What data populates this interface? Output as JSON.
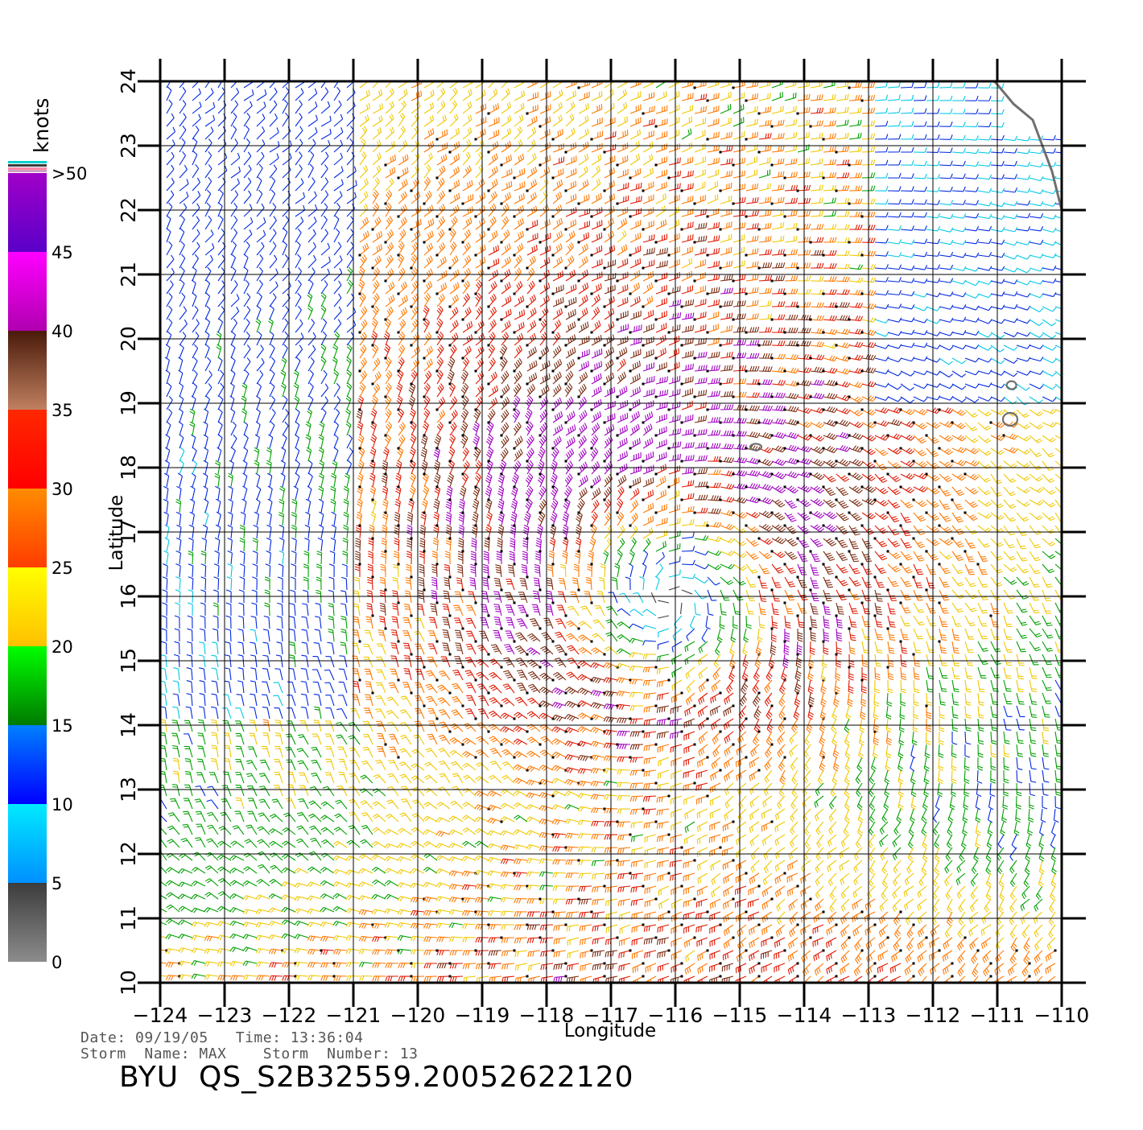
{
  "map": {
    "x_axis_title": "Longitude",
    "y_axis_title": "Latitude",
    "lon_range": [
      -124,
      -110
    ],
    "lat_range": [
      10,
      24
    ],
    "lon_ticks": [
      "−124",
      "−123",
      "−122",
      "−121",
      "−120",
      "−119",
      "−118",
      "−117",
      "−116",
      "−115",
      "−114",
      "−113",
      "−112",
      "−111",
      "−110"
    ],
    "lat_ticks": [
      "10",
      "11",
      "12",
      "13",
      "14",
      "15",
      "16",
      "17",
      "18",
      "19",
      "20",
      "21",
      "22",
      "23",
      "24"
    ],
    "grid": true,
    "vectors": "wind barbs colored by speed",
    "storm_center_lon": -116.2,
    "storm_center_lat": 16.3
  },
  "legend": {
    "unit": "knots",
    "ticks": [
      "0",
      "5",
      "10",
      "15",
      "20",
      "25",
      "30",
      "35",
      "40",
      "45",
      ">50"
    ],
    "bands": [
      {
        "from": 0,
        "to": 5,
        "top": "#3c3c3c",
        "bottom": "#8c8c8c"
      },
      {
        "from": 5,
        "to": 10,
        "top": "#00eaff",
        "bottom": "#0090ff"
      },
      {
        "from": 10,
        "to": 15,
        "top": "#0080ff",
        "bottom": "#0000ff"
      },
      {
        "from": 15,
        "to": 20,
        "top": "#00ff00",
        "bottom": "#007a00"
      },
      {
        "from": 20,
        "to": 25,
        "top": "#ffff00",
        "bottom": "#ffc000"
      },
      {
        "from": 25,
        "to": 30,
        "top": "#ff8c00",
        "bottom": "#ff3c00"
      },
      {
        "from": 30,
        "to": 35,
        "top": "#ff2800",
        "bottom": "#ff0000"
      },
      {
        "from": 35,
        "to": 40,
        "top": "#4a1a0a",
        "bottom": "#c08060"
      },
      {
        "from": 40,
        "to": 45,
        "top": "#ff00ff",
        "bottom": "#b000b0"
      },
      {
        "from": 45,
        "to": 50,
        "top": "#a000c8",
        "bottom": "#5a00c8"
      }
    ]
  },
  "meta": {
    "date_line": "Date: 09/19/05   Time: 13:36:04",
    "storm_line": "Storm  Name: MAX    Storm  Number: 13",
    "title": "BYU  QS_S2B32559.20052622120"
  }
}
